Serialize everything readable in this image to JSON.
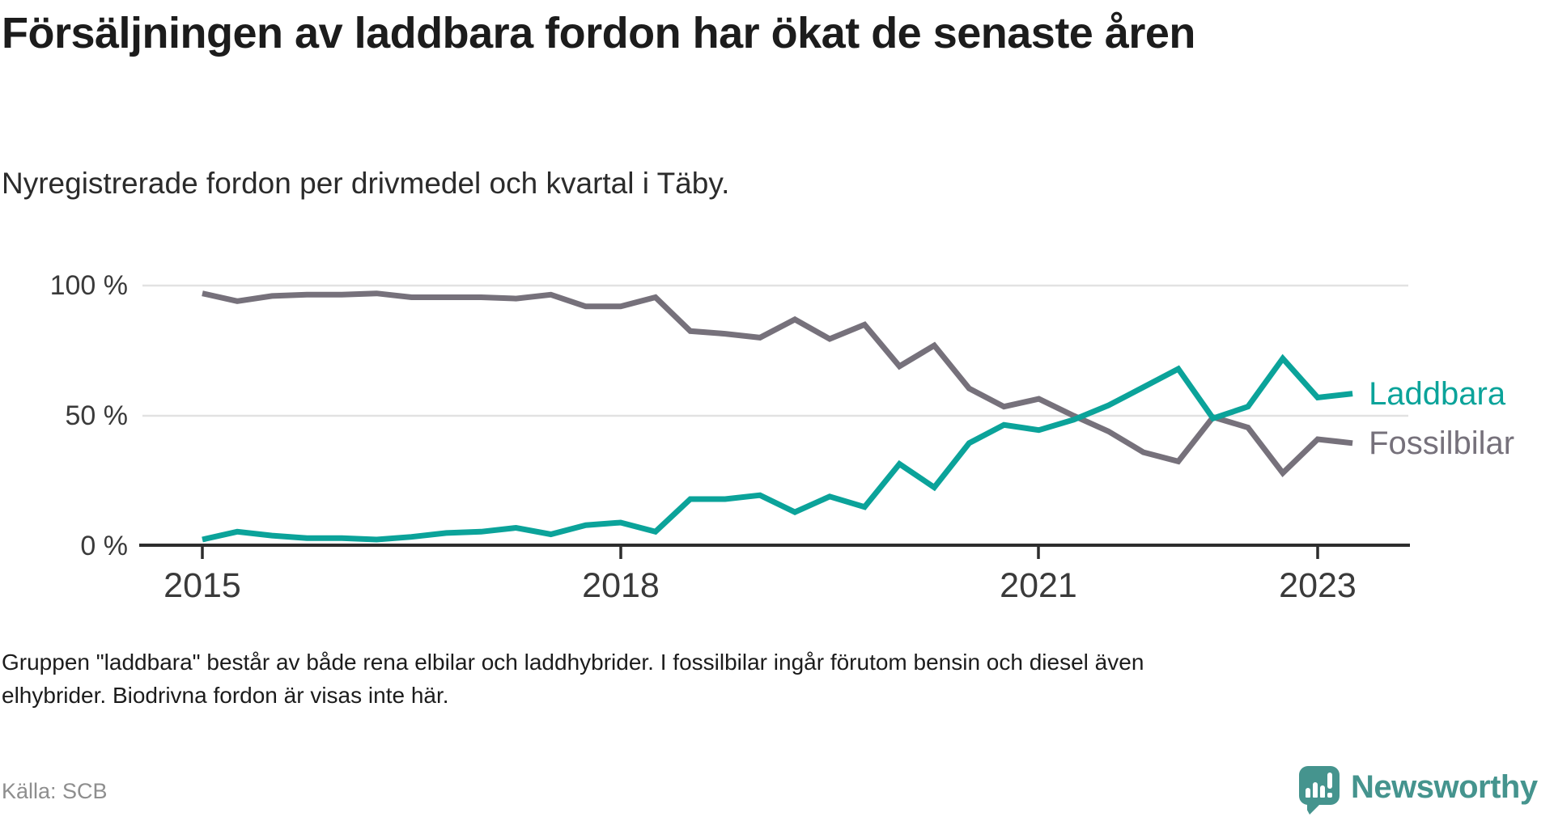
{
  "title": "Försäljningen av laddbara fordon har ökat de senaste åren",
  "subtitle": "Nyregistrerade fordon per drivmedel och kvartal i Täby.",
  "footnote": {
    "line1": "Gruppen \"laddbara\" består av både rena elbilar och laddhybrider. I fossilbilar ingår förutom bensin och diesel även",
    "line2": "elhybrider. Biodrivna fordon är visas inte här."
  },
  "source": "Källa: SCB",
  "brand": {
    "name": "Newsworthy",
    "color": "#45948e"
  },
  "colors": {
    "laddbara": "#0ba39a",
    "fossilbilar": "#76717b",
    "gridline": "#e2e2e2",
    "axis": "#2d2d2d"
  },
  "chart_data": {
    "type": "line",
    "title": "Försäljningen av laddbara fordon har ökat de senaste åren",
    "subtitle": "Nyregistrerade fordon per drivmedel och kvartal i Täby.",
    "x_unit": "quarter",
    "categories": [
      "2015 Q1",
      "2015 Q2",
      "2015 Q3",
      "2015 Q4",
      "2016 Q1",
      "2016 Q2",
      "2016 Q3",
      "2016 Q4",
      "2017 Q1",
      "2017 Q2",
      "2017 Q3",
      "2017 Q4",
      "2018 Q1",
      "2018 Q2",
      "2018 Q3",
      "2018 Q4",
      "2019 Q1",
      "2019 Q2",
      "2019 Q3",
      "2019 Q4",
      "2020 Q1",
      "2020 Q2",
      "2020 Q3",
      "2020 Q4",
      "2021 Q1",
      "2021 Q2",
      "2021 Q3",
      "2021 Q4",
      "2022 Q1",
      "2022 Q2",
      "2022 Q3",
      "2022 Q4",
      "2023 Q1",
      "2023 Q2"
    ],
    "series": [
      {
        "name": "Fossilbilar",
        "color": "#76717b",
        "values": [
          97,
          94,
          96,
          96.5,
          96.5,
          97,
          95.5,
          95.5,
          95.5,
          95,
          96.5,
          92,
          92,
          95.5,
          82.5,
          81.5,
          80,
          87,
          79.5,
          85,
          69,
          77,
          60.5,
          53.5,
          56.5,
          50,
          44,
          36,
          32.5,
          49.5,
          45.5,
          28,
          41,
          39.5
        ]
      },
      {
        "name": "Laddbara",
        "color": "#0ba39a",
        "values": [
          2.5,
          5.5,
          4,
          3,
          3,
          2.5,
          3.5,
          5,
          5.5,
          7,
          4.5,
          8,
          9,
          5.5,
          18,
          18,
          19.5,
          13,
          19,
          15,
          31.5,
          22.5,
          39.5,
          46.5,
          44.5,
          48.5,
          54,
          61,
          68,
          49,
          53.5,
          72,
          57,
          58.5
        ]
      }
    ],
    "y_tick_labels": [
      "100 %",
      "50 %",
      "0 %"
    ],
    "x_tick_labels": [
      "2015",
      "2018",
      "2021",
      "2023"
    ],
    "ylim": [
      0,
      100
    ],
    "grid": "horizontal",
    "legend_position": "end-of-line-labels",
    "unit": "percent"
  }
}
